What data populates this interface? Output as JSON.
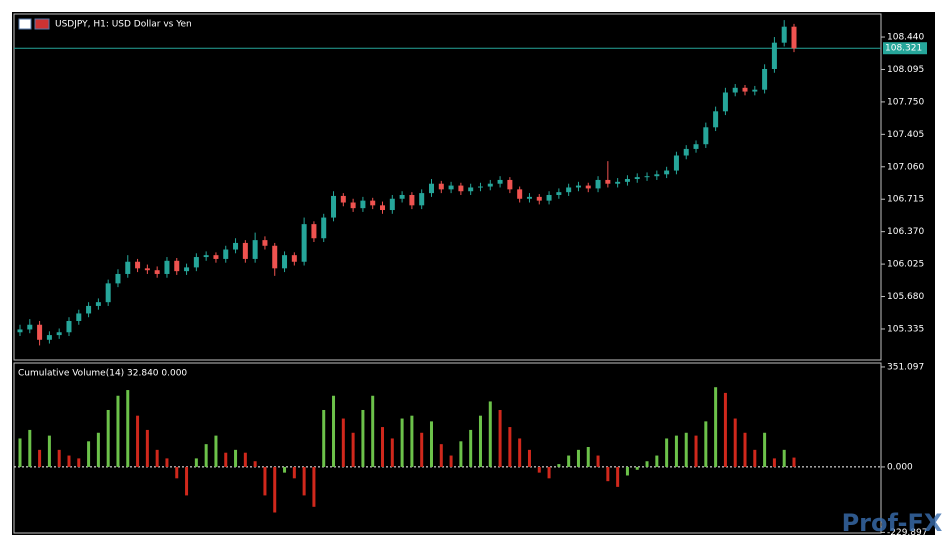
{
  "chart_data": [
    {
      "type": "candlestick",
      "title": "USDJPY, H1:  USD Dollar vs Yen",
      "up_color": "#26a69a",
      "down_color": "#ef5350",
      "open": [
        105.3,
        105.33,
        105.38,
        105.22,
        105.27,
        105.3,
        105.42,
        105.5,
        105.58,
        105.62,
        105.82,
        105.92,
        106.05,
        105.98,
        105.96,
        105.92,
        106.06,
        105.95,
        105.99,
        106.1,
        106.12,
        106.08,
        106.18,
        106.25,
        106.08,
        106.28,
        106.22,
        105.98,
        106.12,
        106.05,
        106.45,
        106.3,
        106.52,
        106.75,
        106.68,
        106.62,
        106.7,
        106.65,
        106.6,
        106.72,
        106.76,
        106.65,
        106.78,
        106.88,
        106.82,
        106.86,
        106.8,
        106.84,
        106.85,
        106.88,
        106.92,
        106.82,
        106.72,
        106.74,
        106.7,
        106.76,
        106.79,
        106.84,
        106.86,
        106.83,
        106.92,
        106.88,
        106.9,
        106.93,
        106.95,
        106.96,
        106.98,
        107.02,
        107.18,
        107.25,
        107.3,
        107.48,
        107.65,
        107.85,
        107.9,
        107.86,
        107.88,
        108.1,
        108.38,
        108.55
      ],
      "high": [
        105.38,
        105.44,
        105.42,
        105.31,
        105.34,
        105.46,
        105.54,
        105.62,
        105.66,
        105.86,
        105.97,
        106.12,
        106.08,
        106.02,
        106.0,
        106.1,
        106.09,
        106.03,
        106.14,
        106.16,
        106.15,
        106.22,
        106.3,
        106.28,
        106.36,
        106.32,
        106.25,
        106.16,
        106.15,
        106.52,
        106.48,
        106.56,
        106.8,
        106.78,
        106.72,
        106.74,
        106.73,
        106.69,
        106.76,
        106.8,
        106.79,
        106.82,
        106.93,
        106.91,
        106.9,
        106.89,
        106.88,
        106.89,
        106.92,
        106.96,
        106.95,
        106.85,
        106.78,
        106.77,
        106.8,
        106.83,
        106.88,
        106.9,
        106.89,
        106.96,
        107.12,
        106.94,
        106.97,
        106.99,
        107.0,
        107.02,
        107.06,
        107.22,
        107.29,
        107.34,
        107.53,
        107.7,
        107.9,
        107.94,
        107.93,
        107.92,
        108.15,
        108.44,
        108.62,
        108.58
      ],
      "low": [
        105.26,
        105.29,
        105.16,
        105.18,
        105.23,
        105.26,
        105.38,
        105.46,
        105.54,
        105.58,
        105.78,
        105.88,
        105.94,
        105.92,
        105.88,
        105.88,
        105.91,
        105.91,
        105.95,
        106.06,
        106.04,
        106.04,
        106.14,
        106.04,
        106.04,
        106.18,
        105.9,
        105.94,
        106.01,
        106.01,
        106.26,
        106.26,
        106.48,
        106.64,
        106.58,
        106.58,
        106.61,
        106.56,
        106.56,
        106.68,
        106.61,
        106.61,
        106.74,
        106.78,
        106.78,
        106.76,
        106.76,
        106.8,
        106.81,
        106.84,
        106.78,
        106.68,
        106.68,
        106.66,
        106.66,
        106.72,
        106.75,
        106.8,
        106.79,
        106.79,
        106.84,
        106.84,
        106.86,
        106.89,
        106.91,
        106.92,
        106.94,
        106.98,
        107.14,
        107.21,
        107.26,
        107.44,
        107.61,
        107.81,
        107.82,
        107.82,
        107.84,
        108.06,
        108.34,
        108.28
      ],
      "close": [
        105.33,
        105.38,
        105.22,
        105.27,
        105.3,
        105.42,
        105.5,
        105.58,
        105.62,
        105.82,
        105.92,
        106.05,
        105.98,
        105.96,
        105.92,
        106.06,
        105.95,
        105.99,
        106.1,
        106.12,
        106.08,
        106.18,
        106.25,
        106.08,
        106.28,
        106.22,
        105.98,
        106.12,
        106.05,
        106.45,
        106.3,
        106.52,
        106.75,
        106.68,
        106.62,
        106.7,
        106.65,
        106.6,
        106.72,
        106.76,
        106.65,
        106.78,
        106.88,
        106.82,
        106.86,
        106.8,
        106.84,
        106.85,
        106.88,
        106.92,
        106.82,
        106.72,
        106.74,
        106.7,
        106.76,
        106.79,
        106.84,
        106.86,
        106.83,
        106.92,
        106.88,
        106.9,
        106.93,
        106.95,
        106.96,
        106.98,
        107.02,
        107.18,
        107.25,
        107.3,
        107.48,
        107.65,
        107.85,
        107.9,
        107.86,
        107.88,
        108.1,
        108.38,
        108.55,
        108.32
      ],
      "last_price": 108.321,
      "last_price_color": "#26a69a",
      "ylim": [
        105.005,
        108.685
      ],
      "yticks": [
        {
          "value": 108.44,
          "label": "108.440"
        },
        108.095,
        {
          "value": 107.75,
          "label": "107.750"
        },
        107.405,
        {
          "value": 107.06,
          "label": "107.060"
        },
        106.715,
        {
          "value": 106.37,
          "label": "106.370"
        },
        106.025,
        {
          "value": 105.68,
          "label": "105.680"
        },
        105.335
      ]
    },
    {
      "type": "bar",
      "title": "Cumulative Volume(14) 32.840 0.000",
      "up_color": "#6cc24a",
      "down_color": "#d0281c",
      "values": [
        100,
        130,
        60,
        110,
        60,
        40,
        30,
        90,
        120,
        200,
        250,
        270,
        180,
        130,
        60,
        30,
        -40,
        -100,
        30,
        80,
        110,
        50,
        60,
        50,
        20,
        -100,
        -160,
        -20,
        -40,
        -100,
        -140,
        200,
        250,
        170,
        120,
        200,
        250,
        140,
        100,
        170,
        180,
        120,
        160,
        80,
        40,
        90,
        130,
        180,
        230,
        200,
        140,
        100,
        60,
        -20,
        -40,
        10,
        40,
        60,
        70,
        40,
        -50,
        -70,
        -30,
        -10,
        20,
        40,
        100,
        110,
        120,
        110,
        160,
        280,
        260,
        170,
        120,
        60,
        120,
        30,
        60,
        32.84
      ],
      "ylim": [
        -232,
        365
      ],
      "yticks": [
        351.097,
        {
          "value": 0,
          "label": "0.000"
        },
        -229.897
      ]
    }
  ],
  "watermark": "Prof-FX"
}
